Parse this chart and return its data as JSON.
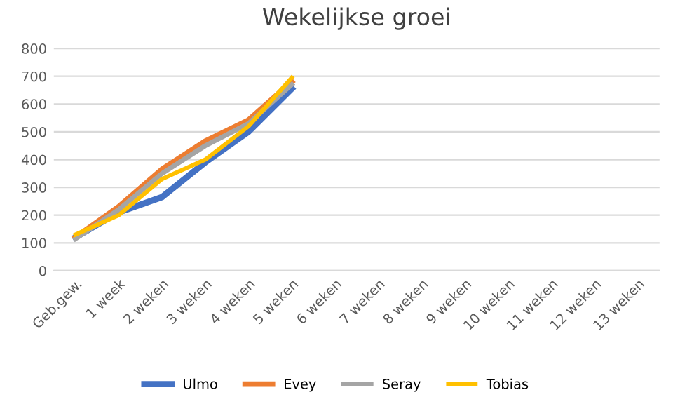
{
  "chart_data": {
    "type": "line",
    "title": "Wekelijkse groei",
    "categories": [
      "Geb.gew.",
      "1 week",
      "2 weken",
      "3 weken",
      "4 weken",
      "5 weken",
      "6 weken",
      "7 weken",
      "8 weken",
      "9 weken",
      "10 weken",
      "11 weken",
      "12 weken",
      "13 weken"
    ],
    "series": [
      {
        "name": "Ulmo",
        "color": "#4472c4",
        "values": [
          120,
          210,
          265,
          390,
          500,
          655,
          null,
          null,
          null,
          null,
          null,
          null,
          null,
          null
        ]
      },
      {
        "name": "Evey",
        "color": "#ed7d31",
        "values": [
          120,
          230,
          365,
          466,
          542,
          680,
          null,
          null,
          null,
          null,
          null,
          null,
          null,
          null
        ]
      },
      {
        "name": "Seray",
        "color": "#a5a5a5",
        "values": [
          115,
          220,
          350,
          450,
          530,
          670,
          null,
          null,
          null,
          null,
          null,
          null,
          null,
          null
        ]
      },
      {
        "name": "Tobias",
        "color": "#ffc000",
        "values": [
          130,
          200,
          330,
          400,
          520,
          695,
          null,
          null,
          null,
          null,
          null,
          null,
          null,
          null
        ]
      }
    ],
    "ylim": [
      0,
      800
    ],
    "yticks": [
      0,
      100,
      200,
      300,
      400,
      500,
      600,
      700,
      800
    ],
    "grid": "y",
    "legend": "bottom",
    "marker": "none",
    "line_style": "solid"
  }
}
